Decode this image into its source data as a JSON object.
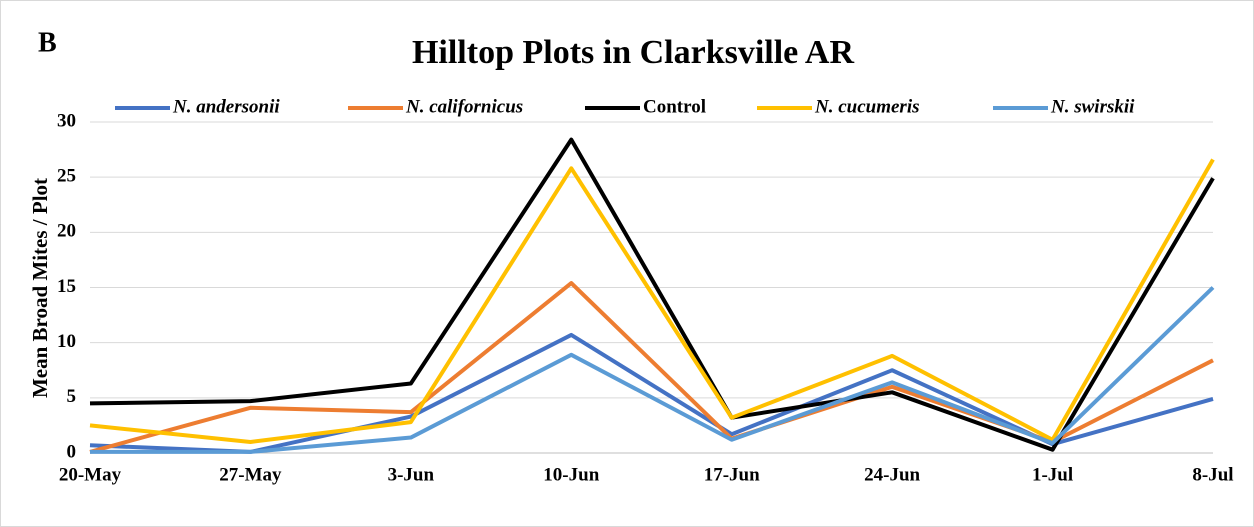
{
  "chart_data": {
    "type": "line",
    "panel": "B",
    "title": "Hilltop Plots in Clarksville AR",
    "ylabel": "Mean Broad Mites / Plot",
    "categories": [
      "20-May",
      "27-May",
      "3-Jun",
      "10-Jun",
      "17-Jun",
      "24-Jun",
      "1-Jul",
      "8-Jul"
    ],
    "series": [
      {
        "name": "N. andersonii",
        "color": "#4472c4",
        "italic": true,
        "values": [
          0.7,
          0.1,
          3.3,
          10.7,
          1.7,
          7.5,
          0.8,
          4.9
        ]
      },
      {
        "name": "N. californicus",
        "color": "#ed7d31",
        "italic": true,
        "values": [
          0.1,
          4.1,
          3.7,
          15.4,
          1.3,
          6.0,
          1.0,
          8.4
        ]
      },
      {
        "name": "Control",
        "color": "#000000",
        "italic": false,
        "values": [
          4.5,
          4.7,
          6.3,
          28.4,
          3.2,
          5.5,
          0.3,
          24.9
        ]
      },
      {
        "name": "N. cucumeris",
        "color": "#ffc000",
        "italic": true,
        "values": [
          2.5,
          1.0,
          2.8,
          25.8,
          3.2,
          8.8,
          1.2,
          26.6
        ]
      },
      {
        "name": "N. swirskii",
        "color": "#5b9bd5",
        "italic": true,
        "values": [
          0.1,
          0.1,
          1.4,
          8.9,
          1.2,
          6.4,
          0.9,
          15.0
        ]
      }
    ],
    "ylim": [
      0,
      30
    ],
    "yticks": [
      0,
      5,
      10,
      15,
      20,
      25,
      30
    ],
    "grid": true,
    "legend": "top"
  }
}
